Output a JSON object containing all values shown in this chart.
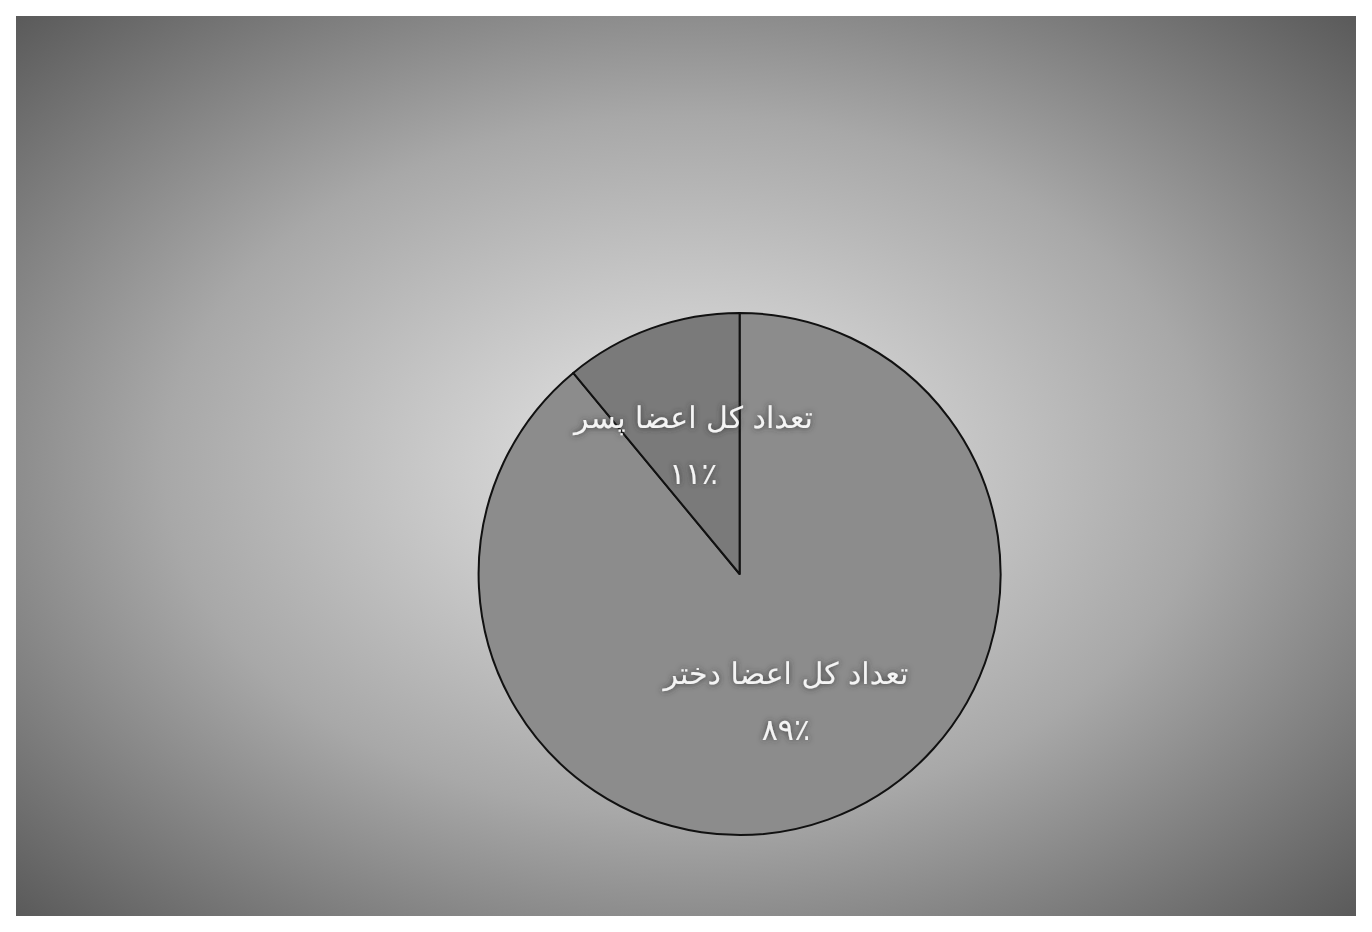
{
  "chart_data": {
    "type": "pie",
    "categories": [
      "تعداد کل اعضا دختر",
      "تعداد کل اعضا پسر"
    ],
    "values": [
      89,
      11
    ],
    "value_labels": [
      "۸۹٪",
      "۱۱٪"
    ],
    "colors": [
      "#8c8c8c",
      "#7a7a7a"
    ],
    "legend": false
  }
}
